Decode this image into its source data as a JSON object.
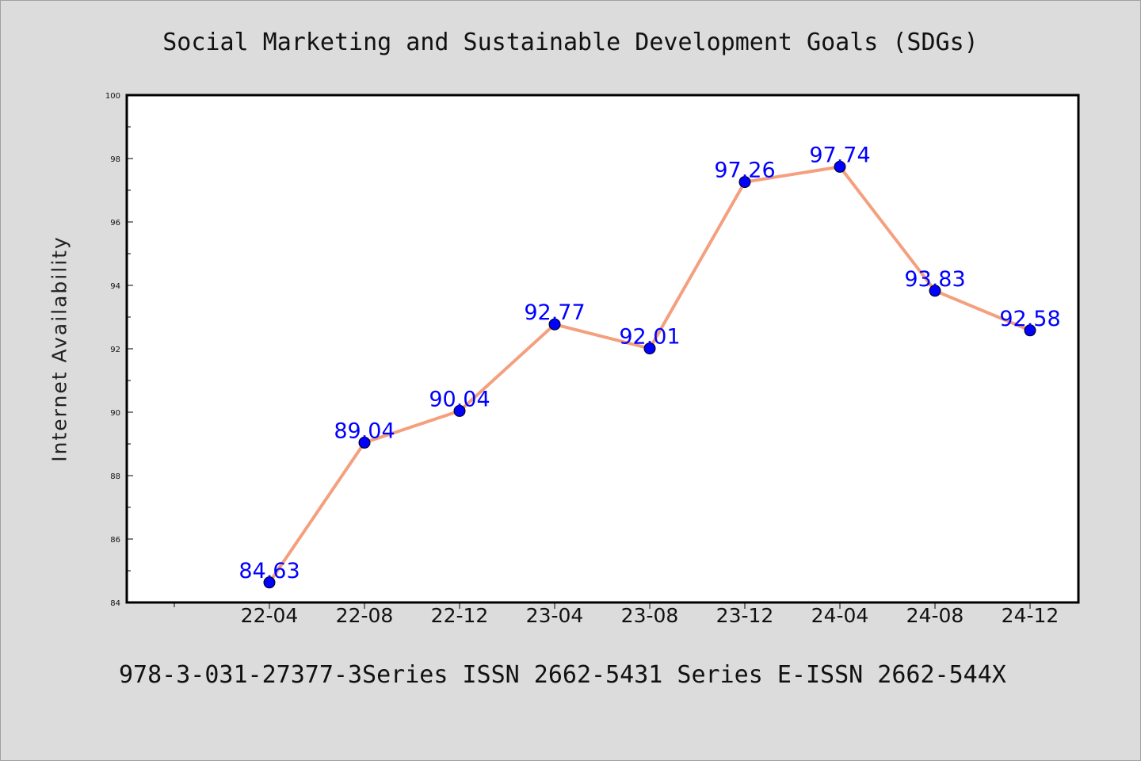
{
  "chart_data": {
    "type": "line",
    "title": "Social Marketing and Sustainable Development Goals (SDGs)",
    "xlabel": "",
    "ylabel": "Internet Availability",
    "categories": [
      "22-04",
      "22-08",
      "22-12",
      "23-04",
      "23-08",
      "23-12",
      "24-04",
      "24-08",
      "24-12"
    ],
    "series": [
      {
        "values": [
          84.63,
          89.04,
          90.04,
          92.77,
          92.01,
          97.26,
          97.74,
          93.83,
          92.58
        ],
        "labels": [
          "84.63",
          "89.04",
          "90.04",
          "92.77",
          "92.01",
          "97.26",
          "97.74",
          "93.83",
          "92.58"
        ],
        "line_color": "#f4a07e",
        "marker_color": "#0000ff"
      }
    ],
    "ylim": [
      84,
      100
    ],
    "yticks": [
      "84",
      "86",
      "88",
      "90",
      "92",
      "94",
      "96",
      "98",
      "100"
    ],
    "grid": false,
    "legend": "none"
  },
  "footer": "978-3-031-27377-3Series ISSN 2662-5431 Series E-ISSN 2662-544X"
}
